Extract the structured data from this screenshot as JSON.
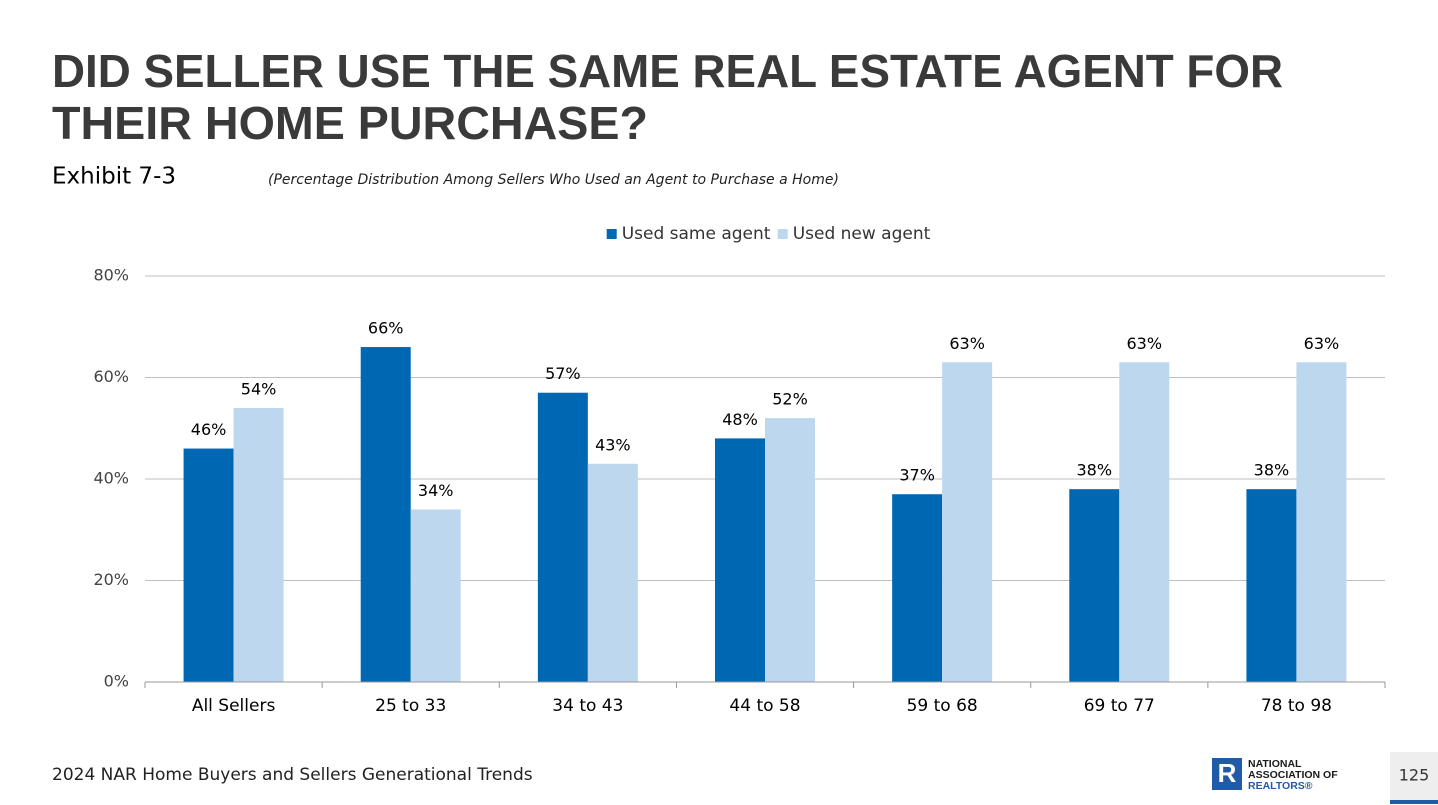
{
  "header": {
    "title_lines": [
      "DID SELLER USE THE SAME REAL ESTATE AGENT FOR",
      "THEIR HOME PURCHASE?"
    ],
    "exhibit": "Exhibit 7-3",
    "subtitle": "(Percentage Distribution Among Sellers Who Used an Agent to Purchase a Home)"
  },
  "chart_data": {
    "type": "bar",
    "categories": [
      "All Sellers",
      "25 to 33",
      "34 to 43",
      "44 to 58",
      "59 to 68",
      "69 to 77",
      "78 to 98"
    ],
    "series": [
      {
        "name": "Used same agent",
        "color": "#0068b3",
        "values": [
          46,
          66,
          57,
          48,
          37,
          38,
          38
        ],
        "value_labels": [
          "46%",
          "66%",
          "57%",
          "48%",
          "37%",
          "38%",
          "38%"
        ]
      },
      {
        "name": "Used new agent",
        "color": "#bdd7ee",
        "values": [
          54,
          34,
          43,
          52,
          63,
          63,
          63
        ],
        "value_labels": [
          "54%",
          "34%",
          "43%",
          "52%",
          "63%",
          "63%",
          "63%"
        ]
      }
    ],
    "ylim": [
      0,
      80
    ],
    "yticks": [
      {
        "value": 0,
        "label": "0%"
      },
      {
        "value": 20,
        "label": "20%"
      },
      {
        "value": 40,
        "label": "40%"
      },
      {
        "value": 60,
        "label": "60%"
      },
      {
        "value": 80,
        "label": "80%"
      }
    ],
    "grid": true,
    "legend": "top"
  },
  "footer": {
    "source": "2024 NAR Home Buyers and Sellers Generational Trends",
    "logo_lines": [
      "NATIONAL",
      "ASSOCIATION OF",
      "REALTORS®"
    ],
    "page_number": "125"
  }
}
